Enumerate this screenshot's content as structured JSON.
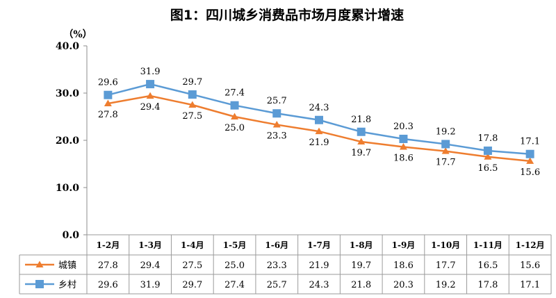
{
  "chart_data": {
    "type": "line",
    "title": "图1：四川城乡消费品市场月度累计增速",
    "ylabel": "（%）",
    "ylim": [
      0,
      40
    ],
    "yticks": [
      "0.0",
      "10.0",
      "20.0",
      "30.0",
      "40.0"
    ],
    "grid": false,
    "legend": "table-bottom",
    "categories": [
      "1-2月",
      "1-3月",
      "1-4月",
      "1-5月",
      "1-6月",
      "1-7月",
      "1-8月",
      "1-9月",
      "1-10月",
      "1-11月",
      "1-12月"
    ],
    "series": [
      {
        "name": "城镇",
        "marker": "triangle",
        "color": "#ee7d2f",
        "values": [
          27.8,
          29.4,
          27.5,
          25.0,
          23.3,
          21.9,
          19.7,
          18.6,
          17.7,
          16.5,
          15.6
        ],
        "labels": [
          "27.8",
          "29.4",
          "27.5",
          "25.0",
          "23.3",
          "21.9",
          "19.7",
          "18.6",
          "17.7",
          "16.5",
          "15.6"
        ]
      },
      {
        "name": "乡村",
        "marker": "square",
        "color": "#5b9bd5",
        "values": [
          29.6,
          31.9,
          29.7,
          27.4,
          25.7,
          24.3,
          21.8,
          20.3,
          19.2,
          17.8,
          17.1
        ],
        "labels": [
          "29.6",
          "31.9",
          "29.7",
          "27.4",
          "25.7",
          "24.3",
          "21.8",
          "20.3",
          "19.2",
          "17.8",
          "17.1"
        ]
      }
    ]
  }
}
